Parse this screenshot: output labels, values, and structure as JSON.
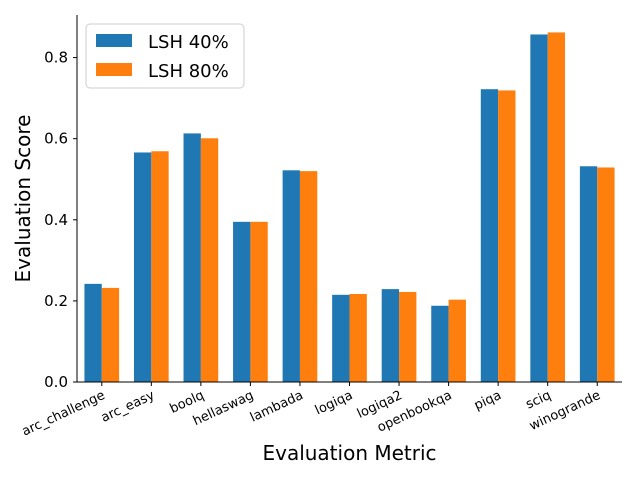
{
  "chart_data": {
    "type": "bar",
    "categories": [
      "arc_challenge",
      "arc_easy",
      "boolq",
      "hellaswag",
      "lambada",
      "logiqa",
      "logiqa2",
      "openbookqa",
      "piqa",
      "sciq",
      "winogrande"
    ],
    "series": [
      {
        "name": "LSH 40%",
        "color": "#1f77b4",
        "values": [
          0.242,
          0.566,
          0.613,
          0.395,
          0.522,
          0.215,
          0.229,
          0.188,
          0.722,
          0.857,
          0.532
        ]
      },
      {
        "name": "LSH 80%",
        "color": "#ff7f0e",
        "values": [
          0.232,
          0.569,
          0.601,
          0.395,
          0.52,
          0.217,
          0.222,
          0.203,
          0.719,
          0.862,
          0.529
        ]
      }
    ],
    "xlabel": "Evaluation Metric",
    "ylabel": "Evaluation Score",
    "ylim": [
      0,
      0.905
    ],
    "yticks": [
      0.0,
      0.2,
      0.4,
      0.6,
      0.8
    ],
    "ytick_labels": [
      "0.0",
      "0.2",
      "0.4",
      "0.6",
      "0.8"
    ],
    "legend_position": "top-left",
    "grid": false
  }
}
